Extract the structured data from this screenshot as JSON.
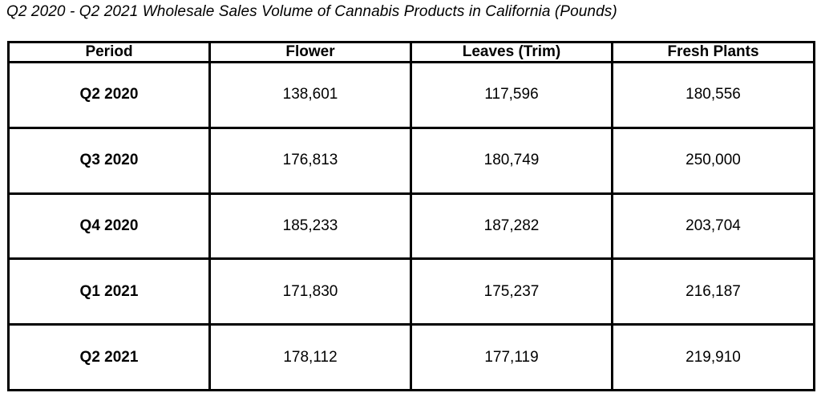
{
  "title": "Q2 2020 - Q2 2021 Wholesale Sales Volume of Cannabis Products in California (Pounds)",
  "columns": [
    "Period",
    "Flower",
    "Leaves (Trim)",
    "Fresh Plants"
  ],
  "rows": [
    [
      "Q2 2020",
      "138,601",
      "117,596",
      "180,556"
    ],
    [
      "Q3 2020",
      "176,813",
      "180,749",
      "250,000"
    ],
    [
      "Q4 2020",
      "185,233",
      "187,282",
      "203,704"
    ],
    [
      "Q1 2021",
      "171,830",
      "175,237",
      "216,187"
    ],
    [
      "Q2 2021",
      "178,112",
      "177,119",
      "219,910"
    ]
  ]
}
